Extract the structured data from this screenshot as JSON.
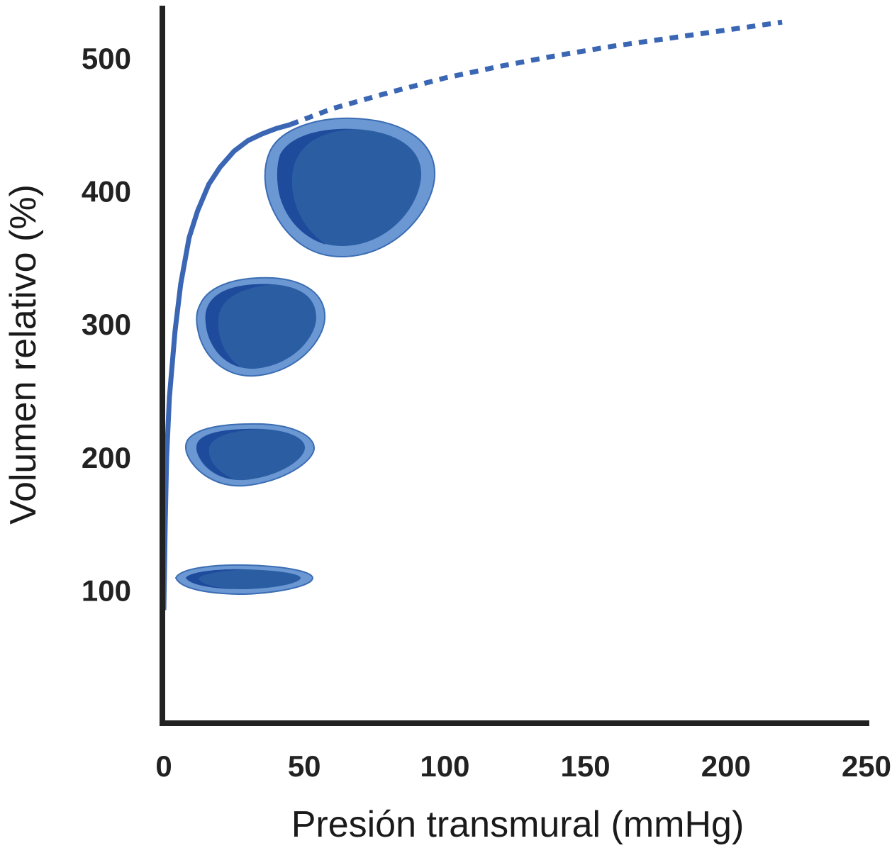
{
  "chart_data": {
    "type": "line",
    "xlabel": "Presión transmural (mmHg)",
    "ylabel": "Volumen relativo (%)",
    "xlim": [
      0,
      250
    ],
    "ylim": [
      0,
      525
    ],
    "xticks": [
      "0",
      "50",
      "100",
      "150",
      "200",
      "250"
    ],
    "yticks": [
      "100",
      "200",
      "300",
      "400",
      "500"
    ],
    "grid": false,
    "legend": "none",
    "series": [
      {
        "style": "solid",
        "x": [
          0,
          0.5,
          1,
          2,
          4,
          6,
          9,
          12,
          16,
          20,
          25,
          30,
          35,
          40,
          45
        ],
        "y": [
          85,
          150,
          200,
          245,
          295,
          330,
          365,
          385,
          405,
          418,
          430,
          438,
          443,
          447,
          450
        ]
      },
      {
        "style": "dashed",
        "x": [
          45,
          60,
          80,
          100,
          120,
          140,
          160,
          180,
          200,
          220
        ],
        "y": [
          450,
          462,
          474,
          485,
          494,
          502,
          509,
          515,
          521,
          527
        ]
      }
    ],
    "annotations": [
      {
        "type": "vessel-cross-section",
        "y": 100
      },
      {
        "type": "vessel-cross-section",
        "y": 200
      },
      {
        "type": "vessel-cross-section",
        "y": 300
      },
      {
        "type": "vessel-cross-section",
        "y": 400
      }
    ],
    "colors": {
      "curve": "#3a66b4",
      "axis": "#222222",
      "vessel_outer": "#6b98d3",
      "vessel_wall_edge": "#3b6db3",
      "vessel_lumen": "#2b5da3",
      "vessel_lumen_dark": "#1e4b9c"
    }
  }
}
